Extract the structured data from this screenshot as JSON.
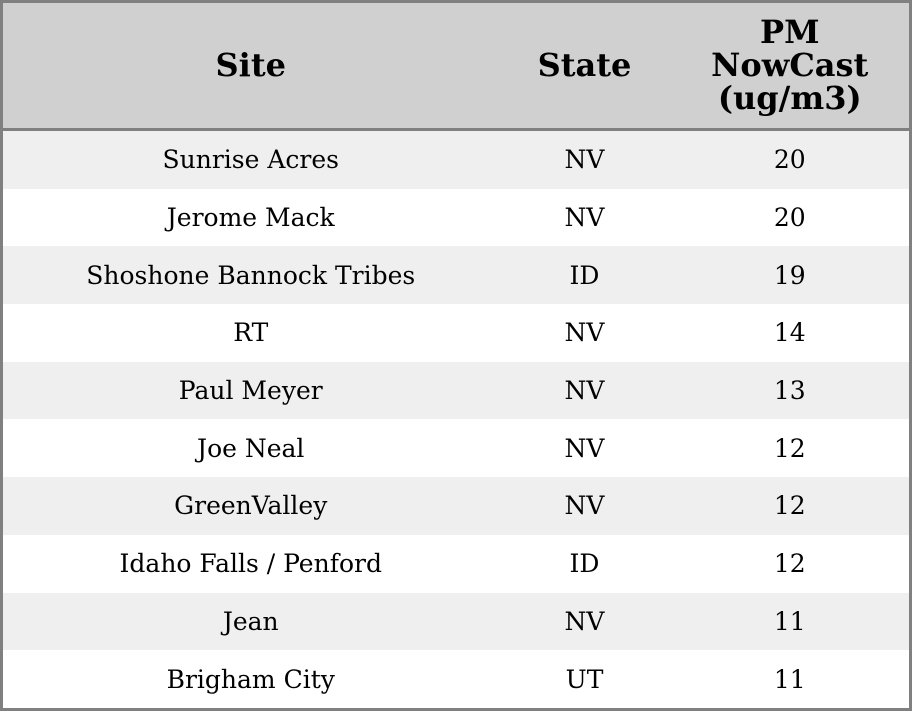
{
  "table": {
    "headers": [
      "Site",
      "State",
      "PM NowCast (ug/m3)"
    ],
    "rows": [
      {
        "site": "Sunrise Acres",
        "state": "NV",
        "pm": "20"
      },
      {
        "site": "Jerome Mack",
        "state": "NV",
        "pm": "20"
      },
      {
        "site": "Shoshone Bannock Tribes",
        "state": "ID",
        "pm": "19"
      },
      {
        "site": "RT",
        "state": "NV",
        "pm": "14"
      },
      {
        "site": "Paul Meyer",
        "state": "NV",
        "pm": "13"
      },
      {
        "site": "Joe Neal",
        "state": "NV",
        "pm": "12"
      },
      {
        "site": "GreenValley",
        "state": "NV",
        "pm": "12"
      },
      {
        "site": "Idaho Falls / Penford",
        "state": "ID",
        "pm": "12"
      },
      {
        "site": "Jean",
        "state": "NV",
        "pm": "11"
      },
      {
        "site": "Brigham City",
        "state": "UT",
        "pm": "11"
      }
    ]
  }
}
